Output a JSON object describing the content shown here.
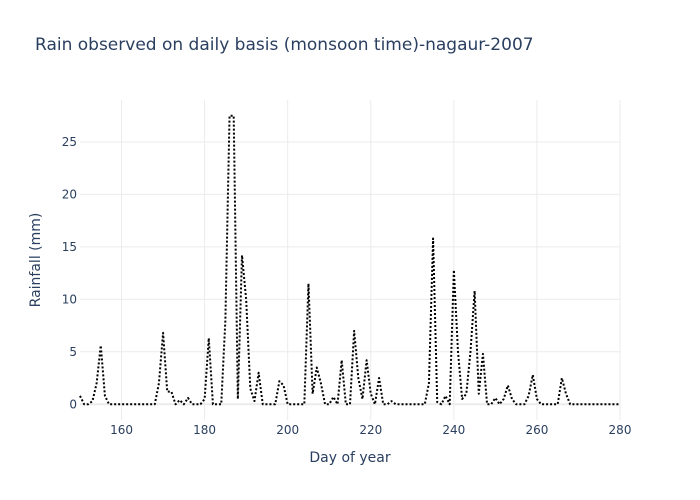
{
  "chart_data": {
    "type": "line",
    "title": "Rain observed on daily basis (monsoon time)-nagaur-2007",
    "xlabel": "Day of year",
    "ylabel": "Rainfall (mm)",
    "xlim": [
      150,
      280
    ],
    "ylim": [
      -1.5,
      29
    ],
    "xticks": [
      160,
      180,
      200,
      220,
      240,
      260,
      280
    ],
    "yticks": [
      0,
      5,
      10,
      15,
      20,
      25
    ],
    "grid": true,
    "legend": "none",
    "series": [
      {
        "color": "#000000",
        "dash": "dot",
        "points": [
          [
            150,
            0.8
          ],
          [
            151,
            0
          ],
          [
            152,
            0
          ],
          [
            153,
            0.3
          ],
          [
            154,
            2
          ],
          [
            155,
            5.6
          ],
          [
            156,
            0.8
          ],
          [
            157,
            0
          ],
          [
            158,
            0
          ],
          [
            159,
            0
          ],
          [
            160,
            0
          ],
          [
            161,
            0
          ],
          [
            162,
            0
          ],
          [
            163,
            0
          ],
          [
            164,
            0
          ],
          [
            165,
            0
          ],
          [
            166,
            0
          ],
          [
            167,
            0
          ],
          [
            168,
            0
          ],
          [
            169,
            2
          ],
          [
            170,
            6.8
          ],
          [
            171,
            1.2
          ],
          [
            172,
            1.2
          ],
          [
            173,
            0
          ],
          [
            174,
            0.4
          ],
          [
            175,
            0
          ],
          [
            176,
            0.6
          ],
          [
            177,
            0
          ],
          [
            178,
            0
          ],
          [
            179,
            0
          ],
          [
            180,
            0.5
          ],
          [
            181,
            6.3
          ],
          [
            182,
            0
          ],
          [
            183,
            0
          ],
          [
            184,
            0
          ],
          [
            185,
            8
          ],
          [
            186,
            27.5
          ],
          [
            187,
            27.5
          ],
          [
            188,
            0.5
          ],
          [
            189,
            14.2
          ],
          [
            190,
            10
          ],
          [
            191,
            1.5
          ],
          [
            192,
            0.3
          ],
          [
            193,
            3
          ],
          [
            194,
            0
          ],
          [
            195,
            0
          ],
          [
            196,
            0
          ],
          [
            197,
            0
          ],
          [
            198,
            2.2
          ],
          [
            199,
            1.8
          ],
          [
            200,
            0
          ],
          [
            201,
            0
          ],
          [
            202,
            0
          ],
          [
            203,
            0
          ],
          [
            204,
            0
          ],
          [
            205,
            11.5
          ],
          [
            206,
            1
          ],
          [
            207,
            3.5
          ],
          [
            208,
            2
          ],
          [
            209,
            0
          ],
          [
            210,
            0
          ],
          [
            211,
            0.7
          ],
          [
            212,
            0
          ],
          [
            213,
            4.2
          ],
          [
            214,
            0
          ],
          [
            215,
            0
          ],
          [
            216,
            7
          ],
          [
            217,
            2.5
          ],
          [
            218,
            0.5
          ],
          [
            219,
            4.2
          ],
          [
            220,
            1
          ],
          [
            221,
            0
          ],
          [
            222,
            2.5
          ],
          [
            223,
            0
          ],
          [
            224,
            0
          ],
          [
            225,
            0.3
          ],
          [
            226,
            0
          ],
          [
            227,
            0
          ],
          [
            228,
            0
          ],
          [
            229,
            0
          ],
          [
            230,
            0
          ],
          [
            231,
            0
          ],
          [
            232,
            0
          ],
          [
            233,
            0
          ],
          [
            234,
            2
          ],
          [
            235,
            15.8
          ],
          [
            236,
            0.2
          ],
          [
            237,
            0
          ],
          [
            238,
            0.8
          ],
          [
            239,
            0
          ],
          [
            240,
            12.8
          ],
          [
            241,
            5
          ],
          [
            242,
            0.5
          ],
          [
            243,
            1
          ],
          [
            244,
            5
          ],
          [
            245,
            10.8
          ],
          [
            246,
            1
          ],
          [
            247,
            4.8
          ],
          [
            248,
            0
          ],
          [
            249,
            0
          ],
          [
            250,
            0.6
          ],
          [
            251,
            0
          ],
          [
            252,
            0.5
          ],
          [
            253,
            1.8
          ],
          [
            254,
            0.5
          ],
          [
            255,
            0
          ],
          [
            256,
            0
          ],
          [
            257,
            0
          ],
          [
            258,
            0.8
          ],
          [
            259,
            2.8
          ],
          [
            260,
            0.5
          ],
          [
            261,
            0
          ],
          [
            262,
            0
          ],
          [
            263,
            0
          ],
          [
            264,
            0
          ],
          [
            265,
            0
          ],
          [
            266,
            2.5
          ],
          [
            267,
            1
          ],
          [
            268,
            0
          ],
          [
            269,
            0
          ],
          [
            270,
            0
          ],
          [
            271,
            0
          ],
          [
            272,
            0
          ],
          [
            273,
            0
          ],
          [
            274,
            0
          ],
          [
            275,
            0
          ],
          [
            276,
            0
          ],
          [
            277,
            0
          ],
          [
            278,
            0
          ],
          [
            279,
            0
          ],
          [
            280,
            0
          ]
        ]
      }
    ]
  }
}
